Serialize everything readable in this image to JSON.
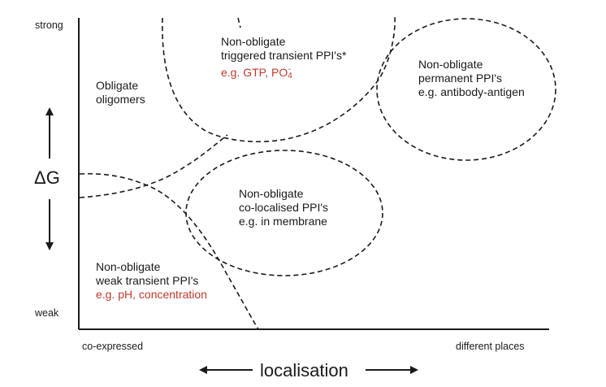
{
  "axes": {
    "y_top": "strong",
    "y_bottom": "weak",
    "y_label": "ΔG",
    "x_left": "co-expressed",
    "x_right": "different places",
    "x_label": "localisation"
  },
  "regions": {
    "obligate": {
      "lines": [
        "Obligate",
        "oligomers"
      ]
    },
    "triggered": {
      "lines": [
        "Non-obligate",
        "triggered transient PPI's*"
      ],
      "example_prefix": "e.g. GTP, PO",
      "example_sub": "4",
      "example_sup": "-"
    },
    "permanent": {
      "lines": [
        "Non-obligate",
        "permanent PPI's",
        "e.g. antibody-antigen"
      ]
    },
    "colocalised": {
      "lines": [
        "Non-obligate",
        "co-localised PPI's",
        "e.g. in membrane"
      ]
    },
    "weak": {
      "lines": [
        "Non-obligate",
        "weak transient PPI's"
      ],
      "example": "e.g. pH, concentration"
    }
  },
  "colors": {
    "line": "#1a1a1a",
    "example_text": "#c0392b"
  }
}
